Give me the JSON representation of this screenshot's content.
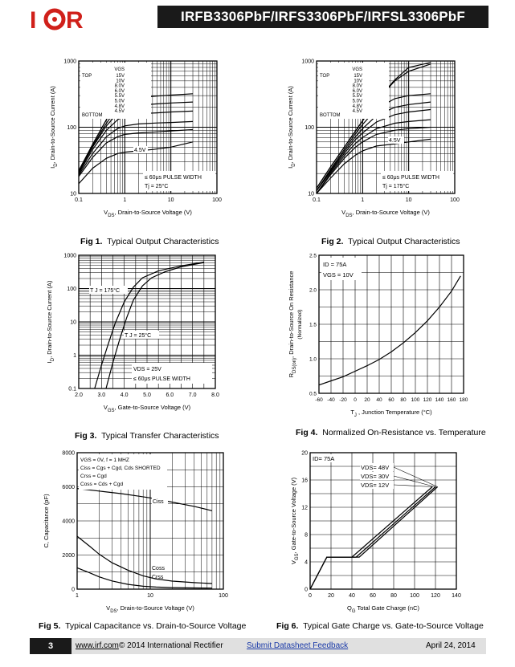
{
  "header": {
    "logo_text": "I⊙R",
    "title": "IRFB3306PbF/IRFS3306PbF/IRFSL3306PbF"
  },
  "footer": {
    "page_number": "3",
    "url": "www.irf.com",
    "copyright": "© 2014 International Rectifier",
    "feedback_link": "Submit Datasheet Feedback",
    "date": "April 24, 2014"
  },
  "colors": {
    "header_bar": "#1a1a1a",
    "footer_bar": "#e0e0e0",
    "feedback_link": "#1a3aa8"
  },
  "chart_data": [
    {
      "id": "fig1",
      "type": "line",
      "caption_num": "Fig 1.",
      "caption": "Typical Output Characteristics",
      "xlabel_pre": "V",
      "xlabel_sub": "DS",
      "xlabel_post": ", Drain-to-Source Voltage (V)",
      "ylabel_pre": "I",
      "ylabel_sub": "D",
      "ylabel_post": ", Drain-to-Source Current (A)",
      "xscale": "log",
      "yscale": "log",
      "xlim": [
        0.1,
        100
      ],
      "ylim": [
        10,
        1000
      ],
      "xticks": [
        "0.1",
        "1",
        "10",
        "100"
      ],
      "yticks": [
        "10",
        "100",
        "1000"
      ],
      "legend_heading": "VGS",
      "legend_top": "TOP",
      "legend_bottom": "BOTTOM",
      "legend_values": [
        "15V",
        "10V",
        "8.0V",
        "6.0V",
        "5.5V",
        "5.0V",
        "4.8V",
        "4.5V"
      ],
      "annotations": [
        "4.5V",
        "≤ 60μs PULSE WIDTH",
        "Tj = 25°C"
      ],
      "series": [
        {
          "x": [
            0.1,
            0.2,
            0.4,
            0.7,
            1.0,
            1.5
          ],
          "y": [
            22,
            55,
            130,
            270,
            420,
            640
          ]
        },
        {
          "x": [
            0.1,
            0.2,
            0.4,
            0.7,
            1.0,
            1.4
          ],
          "y": [
            22,
            55,
            130,
            260,
            380,
            520
          ]
        },
        {
          "x": [
            0.1,
            0.2,
            0.4,
            0.7,
            1.0,
            2.0,
            5,
            10,
            30
          ],
          "y": [
            21,
            52,
            115,
            200,
            250,
            280,
            295,
            305,
            320
          ]
        },
        {
          "x": [
            0.1,
            0.2,
            0.4,
            0.7,
            1.0,
            2.0,
            5,
            10,
            30
          ],
          "y": [
            21,
            50,
            105,
            165,
            195,
            215,
            225,
            232,
            240
          ]
        },
        {
          "x": [
            0.1,
            0.2,
            0.4,
            0.7,
            1.0,
            2.0,
            5,
            10,
            30
          ],
          "y": [
            20,
            46,
            90,
            130,
            148,
            160,
            165,
            170,
            175
          ]
        },
        {
          "x": [
            0.1,
            0.2,
            0.4,
            0.7,
            1.0,
            2.0,
            5,
            10,
            30
          ],
          "y": [
            19,
            40,
            72,
            96,
            105,
            112,
            116,
            118,
            122
          ]
        },
        {
          "x": [
            0.1,
            0.2,
            0.4,
            0.7,
            1.0,
            2.0,
            5,
            10,
            30
          ],
          "y": [
            18,
            35,
            58,
            72,
            78,
            82,
            85,
            88,
            92
          ]
        },
        {
          "x": [
            0.1,
            0.2,
            0.4,
            0.7,
            1.0,
            2.0,
            4,
            10,
            30
          ],
          "y": [
            14,
            24,
            34,
            40,
            42,
            44,
            46,
            50,
            60
          ]
        }
      ]
    },
    {
      "id": "fig2",
      "type": "line",
      "caption_num": "Fig 2.",
      "caption": "Typical Output Characteristics",
      "xlabel_pre": "V",
      "xlabel_sub": "DS",
      "xlabel_post": ", Drain-to-Source Voltage (V)",
      "ylabel_pre": "I",
      "ylabel_sub": "D",
      "ylabel_post": ", Drain-to-Source Current (A)",
      "xscale": "log",
      "yscale": "log",
      "xlim": [
        0.1,
        100
      ],
      "ylim": [
        10,
        1000
      ],
      "xticks": [
        "0.1",
        "1",
        "10",
        "100"
      ],
      "yticks": [
        "10",
        "100",
        "1000"
      ],
      "legend_heading": "VGS",
      "legend_top": "TOP",
      "legend_bottom": "BOTTOM",
      "legend_values": [
        "15V",
        "10V",
        "8.0V",
        "6.0V",
        "5.5V",
        "5.0V",
        "4.8V",
        "4.5V"
      ],
      "annotations": [
        "4.5V",
        "≤ 60μs PULSE WIDTH",
        "Tj = 175°C"
      ],
      "series": [
        {
          "x": [
            0.1,
            0.2,
            0.4,
            0.7,
            1.0,
            2.0,
            5,
            10,
            30
          ],
          "y": [
            12,
            25,
            50,
            88,
            125,
            250,
            520,
            800,
            950
          ]
        },
        {
          "x": [
            0.1,
            0.2,
            0.4,
            0.7,
            1.0,
            2.0,
            5,
            10,
            30
          ],
          "y": [
            12,
            25,
            50,
            88,
            125,
            250,
            500,
            700,
            900
          ]
        },
        {
          "x": [
            0.1,
            0.2,
            0.4,
            0.7,
            1.0,
            2.0,
            5,
            10,
            30
          ],
          "y": [
            11,
            23,
            46,
            80,
            110,
            190,
            270,
            300,
            320
          ]
        },
        {
          "x": [
            0.1,
            0.2,
            0.4,
            0.7,
            1.0,
            2.0,
            5,
            10,
            30
          ],
          "y": [
            11,
            22,
            43,
            72,
            95,
            150,
            200,
            220,
            240
          ]
        },
        {
          "x": [
            0.1,
            0.2,
            0.4,
            0.7,
            1.0,
            2.0,
            5,
            10,
            30
          ],
          "y": [
            11,
            21,
            40,
            65,
            82,
            120,
            155,
            170,
            185
          ]
        },
        {
          "x": [
            0.1,
            0.2,
            0.4,
            0.7,
            1.0,
            2.0,
            5,
            10,
            30
          ],
          "y": [
            10,
            20,
            37,
            57,
            70,
            95,
            115,
            122,
            130
          ]
        },
        {
          "x": [
            0.1,
            0.2,
            0.4,
            0.7,
            1.0,
            2.0,
            5,
            10,
            30
          ],
          "y": [
            10,
            19,
            34,
            50,
            60,
            78,
            90,
            95,
            100
          ]
        },
        {
          "x": [
            0.1,
            0.2,
            0.4,
            0.7,
            1.0,
            2.0,
            5,
            10,
            30
          ],
          "y": [
            10,
            17,
            28,
            38,
            44,
            52,
            56,
            60,
            66
          ]
        }
      ]
    },
    {
      "id": "fig3",
      "type": "line",
      "caption_num": "Fig 3.",
      "caption": "Typical Transfer Characteristics",
      "xlabel_pre": "V",
      "xlabel_sub": "GS",
      "xlabel_post": ", Gate-to-Source Voltage (V)",
      "ylabel_pre": "I",
      "ylabel_sub": "D",
      "ylabel_post": ", Drain-to-Source Current (A)",
      "xscale": "linear",
      "yscale": "log",
      "xlim": [
        2.0,
        8.0
      ],
      "ylim": [
        0.1,
        1000
      ],
      "xticks": [
        "2.0",
        "3.0",
        "4.0",
        "5.0",
        "6.0",
        "7.0",
        "8.0"
      ],
      "yticks": [
        "0.1",
        "1",
        "10",
        "100",
        "1000"
      ],
      "annotations": [
        "T J = 175°C",
        "T J = 25°C",
        "VDS = 25V",
        "≤ 60μs PULSE WIDTH"
      ],
      "series": [
        {
          "x": [
            2.7,
            3.0,
            3.3,
            3.6,
            4.0,
            4.4,
            4.8,
            5.5,
            6.5,
            7.5
          ],
          "y": [
            0.1,
            0.5,
            2.2,
            9,
            40,
            110,
            210,
            340,
            480,
            620
          ]
        },
        {
          "x": [
            3.2,
            3.5,
            3.8,
            4.1,
            4.4,
            4.8,
            5.2,
            5.8,
            6.5,
            7.5
          ],
          "y": [
            0.1,
            0.6,
            3,
            13,
            45,
            120,
            210,
            320,
            450,
            600
          ]
        }
      ]
    },
    {
      "id": "fig4",
      "type": "line",
      "caption_num": "Fig 4.",
      "caption": "Normalized On-Resistance vs. Temperature",
      "xlabel_pre": "T",
      "xlabel_sub": "J",
      "xlabel_post": " , Junction Temperature (°C)",
      "ylabel_pre": "R",
      "ylabel_sub": "DS(on)",
      "ylabel_post": ", Drain-to-Source On Resistance",
      "ylabel_line2": "(Normalized)",
      "xscale": "linear",
      "yscale": "linear",
      "xlim": [
        -60,
        180
      ],
      "ylim": [
        0.5,
        2.5
      ],
      "xticks": [
        "-60",
        "-40",
        "-20",
        "0",
        "20",
        "40",
        "60",
        "80",
        "100",
        "120",
        "140",
        "160",
        "180"
      ],
      "yticks": [
        "0.5",
        "1.0",
        "1.5",
        "2.0",
        "2.5"
      ],
      "annotations": [
        "ID = 75A",
        "VGS = 10V"
      ],
      "series": [
        {
          "x": [
            -60,
            -40,
            -20,
            0,
            20,
            40,
            60,
            80,
            100,
            120,
            140,
            160,
            175
          ],
          "y": [
            0.62,
            0.68,
            0.74,
            0.82,
            0.9,
            0.99,
            1.1,
            1.23,
            1.38,
            1.55,
            1.75,
            1.98,
            2.2
          ]
        }
      ]
    },
    {
      "id": "fig5",
      "type": "line",
      "caption_num": "Fig 5.",
      "caption": "Typical Capacitance vs. Drain-to-Source Voltage",
      "xlabel_pre": "V",
      "xlabel_sub": "DS",
      "xlabel_post": ", Drain-to-Source Voltage (V)",
      "ylabel_pre": "C, Capacitance (pF)",
      "ylabel_sub": "",
      "ylabel_post": "",
      "xscale": "log",
      "yscale": "linear",
      "xlim": [
        1,
        100
      ],
      "ylim": [
        0,
        8000
      ],
      "xticks": [
        "1",
        "10",
        "100"
      ],
      "yticks": [
        "0",
        "2000",
        "4000",
        "6000",
        "8000"
      ],
      "legend_lines": [
        "VGS = 0V, f = 1 MHZ",
        "Ciss = Cgs + Cgd, Cds SHORTED",
        "Crss = Cgd",
        "Coss = Cds + Cgd"
      ],
      "annotations": [
        "Ciss",
        "Coss",
        "Crss"
      ],
      "series": [
        {
          "x": [
            1,
            2,
            4,
            7,
            10,
            20,
            40,
            70
          ],
          "y": [
            5900,
            5750,
            5600,
            5450,
            5350,
            5100,
            4850,
            4600
          ]
        },
        {
          "x": [
            1,
            1.5,
            2,
            3,
            5,
            8,
            12,
            20,
            40,
            70
          ],
          "y": [
            3100,
            2500,
            2050,
            1550,
            1100,
            780,
            600,
            470,
            380,
            330
          ]
        },
        {
          "x": [
            1,
            1.5,
            2,
            3,
            5,
            8,
            12,
            20,
            40,
            70
          ],
          "y": [
            1250,
            950,
            720,
            480,
            280,
            170,
            120,
            90,
            70,
            60
          ]
        }
      ]
    },
    {
      "id": "fig6",
      "type": "line",
      "caption_num": "Fig 6.",
      "caption": "Typical Gate Charge vs. Gate-to-Source Voltage",
      "xlabel_pre": "Q",
      "xlabel_sub": "G",
      "xlabel_post": " Total Gate Charge (nC)",
      "ylabel_pre": "V",
      "ylabel_sub": "GS",
      "ylabel_post": ", Gate-to-Source Voltage (V)",
      "xscale": "linear",
      "yscale": "linear",
      "xlim": [
        0,
        140
      ],
      "ylim": [
        0,
        20
      ],
      "xticks": [
        "0",
        "20",
        "40",
        "60",
        "80",
        "100",
        "120",
        "140"
      ],
      "yticks": [
        "0",
        "4",
        "8",
        "12",
        "16",
        "20"
      ],
      "annotations": [
        "ID= 75A",
        "VDS= 48V",
        "VDS= 30V",
        "VDS= 12V"
      ],
      "series": [
        {
          "x": [
            0,
            16,
            47,
            122
          ],
          "y": [
            0,
            4.7,
            4.7,
            15
          ]
        },
        {
          "x": [
            0,
            16,
            44,
            120
          ],
          "y": [
            0,
            4.7,
            4.7,
            15
          ]
        },
        {
          "x": [
            0,
            16,
            40,
            117
          ],
          "y": [
            0,
            4.7,
            4.7,
            15
          ]
        }
      ]
    }
  ]
}
